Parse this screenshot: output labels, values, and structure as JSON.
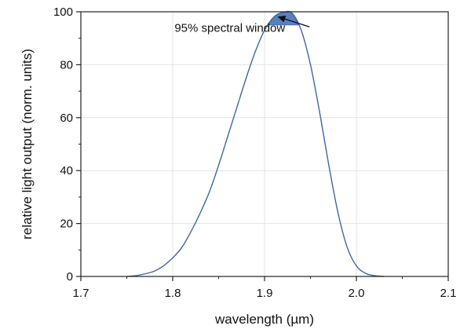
{
  "chart_data": {
    "type": "line",
    "xlabel": "wavelength (µm)",
    "ylabel": "relative light output (norm. units)",
    "xlim": [
      1.7,
      2.1
    ],
    "ylim": [
      0,
      100
    ],
    "xticks": [
      "1.7",
      "1.8",
      "1.9",
      "2.0",
      "2.1"
    ],
    "yticks": [
      "0",
      "20",
      "40",
      "60",
      "80",
      "100"
    ],
    "grid": true,
    "series": [
      {
        "x": [
          1.75,
          1.76,
          1.77,
          1.78,
          1.79,
          1.8,
          1.81,
          1.82,
          1.83,
          1.84,
          1.85,
          1.86,
          1.87,
          1.88,
          1.89,
          1.9,
          1.91,
          1.92,
          1.93,
          1.94,
          1.95,
          1.96,
          1.97,
          1.98,
          1.99,
          2.0,
          2.01,
          2.02,
          2.03
        ],
        "values": [
          0,
          0.3,
          1,
          2,
          4,
          7,
          11,
          17,
          24,
          32,
          42,
          53,
          64,
          75,
          85,
          93,
          98,
          99.8,
          99.5,
          93,
          80,
          62,
          42,
          24,
          11,
          4,
          1.2,
          0.3,
          0
        ],
        "color": "#3d67a6"
      }
    ],
    "annotations": [
      {
        "text": "95% spectral window",
        "x": 1.802,
        "y": 92.5,
        "arrow_to": [
          1.914,
          98.2
        ]
      }
    ],
    "shaded_region": {
      "threshold": 95,
      "color": "#5a7fbf"
    }
  }
}
